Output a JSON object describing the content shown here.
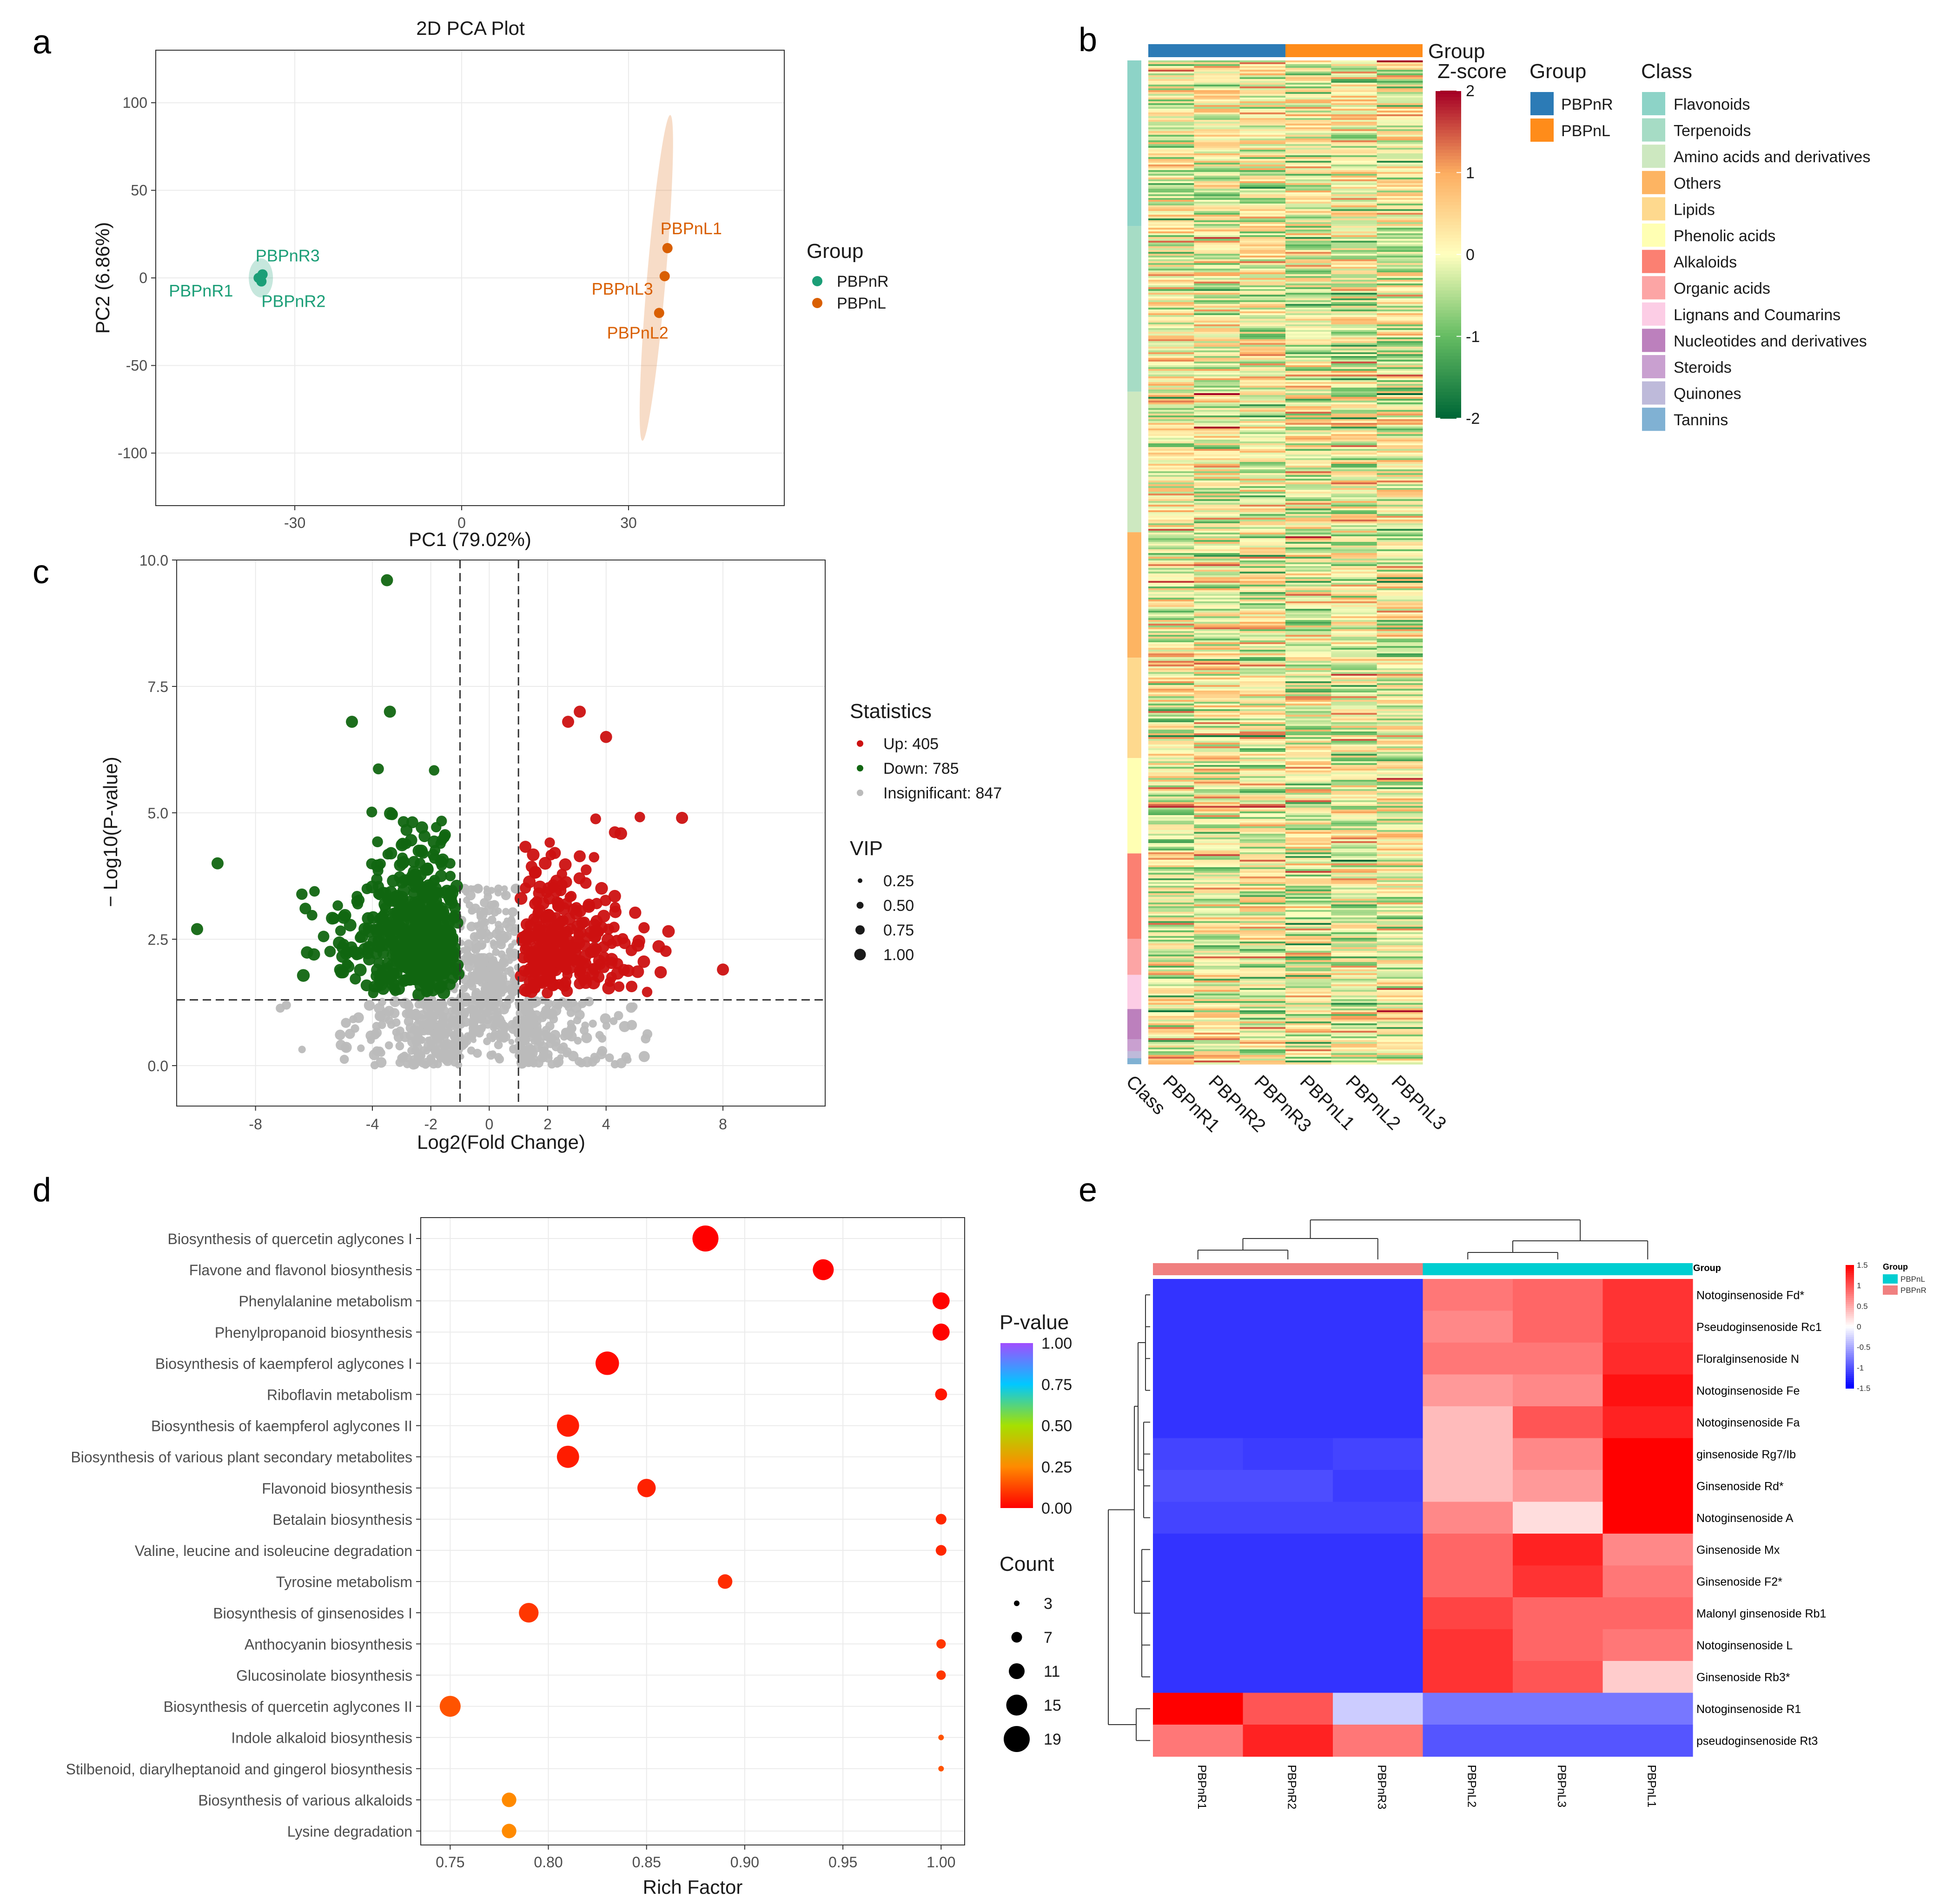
{
  "panel_labels": {
    "a": "a",
    "b": "b",
    "c": "c",
    "d": "d",
    "e": "e"
  },
  "colors": {
    "pbpnr_pca": "#1b9e77",
    "pbpnl_pca": "#d95f02",
    "up": "#cc1111",
    "down": "#116611",
    "insig": "#bbbbbb",
    "group_r": "#2c7bb6",
    "group_l": "#ff8c1a",
    "e_group_l": "#00ced1",
    "e_group_r": "#f08080"
  },
  "chart_data": [
    {
      "panel": "a",
      "type": "scatter",
      "title": "2D PCA Plot",
      "xlabel": "PC1 (79.02%)",
      "ylabel": "PC2 (6.86%)",
      "xlim": [
        -55,
        58
      ],
      "ylim": [
        -130,
        130
      ],
      "xticks": [
        -30,
        0,
        30
      ],
      "yticks": [
        100,
        50,
        0,
        -50,
        -100
      ],
      "xtick_labels": [
        "-30",
        "0",
        "30"
      ],
      "ytick_labels": [
        "100",
        "50",
        "0",
        "-50",
        "-100"
      ],
      "legend_title": "Group",
      "series": [
        {
          "name": "PBPnR",
          "points": [
            {
              "label": "PBPnR1",
              "x": -36.5,
              "y": 0
            },
            {
              "label": "PBPnR2",
              "x": -36.0,
              "y": -2
            },
            {
              "label": "PBPnR3",
              "x": -35.8,
              "y": 2
            }
          ]
        },
        {
          "name": "PBPnL",
          "points": [
            {
              "label": "PBPnL1",
              "x": 37.0,
              "y": 17
            },
            {
              "label": "PBPnL2",
              "x": 35.5,
              "y": -20
            },
            {
              "label": "PBPnL3",
              "x": 36.5,
              "y": 1
            }
          ]
        }
      ]
    },
    {
      "panel": "b",
      "type": "heatmap",
      "legend_group_title": "Group",
      "legend_class_title": "Class",
      "zscore_title": "Z-score",
      "zscore_ticks": [
        "2",
        "1",
        "0",
        "-1",
        "-2"
      ],
      "groups": [
        "PBPnR",
        "PBPnL"
      ],
      "columns": [
        "Class",
        "PBPnR1",
        "PBPnR2",
        "PBPnR3",
        "PBPnL1",
        "PBPnL2",
        "PBPnL3"
      ],
      "classes": [
        {
          "name": "Flavonoids",
          "color": "#8dd3c7",
          "frac": 0.165
        },
        {
          "name": "Terpenoids",
          "color": "#a6dcc5",
          "frac": 0.165
        },
        {
          "name": "Amino acids and derivatives",
          "color": "#cde8c0",
          "frac": 0.14
        },
        {
          "name": "Others",
          "color": "#fdb462",
          "frac": 0.125
        },
        {
          "name": "Lipids",
          "color": "#fed98e",
          "frac": 0.1
        },
        {
          "name": "Phenolic acids",
          "color": "#ffffb3",
          "frac": 0.095
        },
        {
          "name": "Alkaloids",
          "color": "#fb8072",
          "frac": 0.085
        },
        {
          "name": "Organic acids",
          "color": "#fca5a5",
          "frac": 0.036
        },
        {
          "name": "Lignans and Coumarins",
          "color": "#fccde5",
          "frac": 0.034
        },
        {
          "name": "Nucleotides and derivatives",
          "color": "#bc80bd",
          "frac": 0.03
        },
        {
          "name": "Steroids",
          "color": "#c9a0d0",
          "frac": 0.012
        },
        {
          "name": "Quinones",
          "color": "#bebada",
          "frac": 0.007
        },
        {
          "name": "Tannins",
          "color": "#80b1d3",
          "frac": 0.006
        }
      ]
    },
    {
      "panel": "c",
      "type": "scatter",
      "xlabel": "Log2(Fold Change)",
      "ylabel": "− Log10(P-value)",
      "xlim": [
        -10.7,
        11.5
      ],
      "ylim": [
        -0.8,
        10.0
      ],
      "xticks": [
        -8,
        -4,
        -2,
        0,
        2,
        4,
        8
      ],
      "xtick_labels": [
        "-8",
        "-4",
        "-2",
        "0",
        "2",
        "4",
        "8"
      ],
      "yticks": [
        0,
        2.5,
        5,
        7.5,
        10
      ],
      "ytick_labels": [
        "0.0",
        "2.5",
        "5.0",
        "7.5",
        "10.0"
      ],
      "thresholds": {
        "x": [
          -1,
          1
        ],
        "y": 1.3
      },
      "legend_stat_title": "Statistics",
      "legend_stats": [
        {
          "label": "Up: 405",
          "key": "up",
          "count": 405
        },
        {
          "label": "Down: 785",
          "key": "down",
          "count": 785
        },
        {
          "label": "Insignificant: 847",
          "key": "insig",
          "count": 847
        }
      ],
      "legend_vip_title": "VIP",
      "vip_levels": [
        "0.25",
        "0.50",
        "0.75",
        "1.00"
      ],
      "highlight_points": [
        {
          "x": -3.5,
          "y": 9.6,
          "cls": "down"
        },
        {
          "x": -4.7,
          "y": 6.8,
          "cls": "down"
        },
        {
          "x": -3.4,
          "y": 7.0,
          "cls": "down"
        },
        {
          "x": 3.1,
          "y": 7.0,
          "cls": "up"
        },
        {
          "x": 2.7,
          "y": 6.8,
          "cls": "up"
        },
        {
          "x": 4.0,
          "y": 6.5,
          "cls": "up"
        },
        {
          "x": 6.6,
          "y": 4.9,
          "cls": "up"
        },
        {
          "x": 8.0,
          "y": 1.9,
          "cls": "up"
        },
        {
          "x": -10.0,
          "y": 2.7,
          "cls": "down"
        },
        {
          "x": -9.3,
          "y": 4.0,
          "cls": "down"
        }
      ]
    },
    {
      "panel": "d",
      "type": "scatter",
      "xlabel": "Rich Factor",
      "xlim": [
        0.735,
        1.012
      ],
      "xticks": [
        0.75,
        0.8,
        0.85,
        0.9,
        0.95,
        1.0
      ],
      "xtick_labels": [
        "0.75",
        "0.80",
        "0.85",
        "0.90",
        "0.95",
        "1.00"
      ],
      "pvalue_title": "P-value",
      "pvalue_ticks": [
        "1.00",
        "0.75",
        "0.50",
        "0.25",
        "0.00"
      ],
      "count_title": "Count",
      "count_levels": [
        "3",
        "7",
        "11",
        "15",
        "19"
      ],
      "pathways": [
        {
          "name": "Biosynthesis of quercetin aglycones I",
          "rich": 0.88,
          "p": 0.002,
          "count": 19
        },
        {
          "name": "Flavone and flavonol biosynthesis",
          "rich": 0.94,
          "p": 0.004,
          "count": 15
        },
        {
          "name": "Phenylalanine metabolism",
          "rich": 1.0,
          "p": 0.005,
          "count": 12
        },
        {
          "name": "Phenylpropanoid biosynthesis",
          "rich": 1.0,
          "p": 0.006,
          "count": 12
        },
        {
          "name": "Biosynthesis of kaempferol aglycones I",
          "rich": 0.83,
          "p": 0.02,
          "count": 17
        },
        {
          "name": "Riboflavin metabolism",
          "rich": 1.0,
          "p": 0.04,
          "count": 8
        },
        {
          "name": "Biosynthesis of kaempferol aglycones II",
          "rich": 0.81,
          "p": 0.05,
          "count": 16
        },
        {
          "name": "Biosynthesis of various plant secondary metabolites",
          "rich": 0.81,
          "p": 0.05,
          "count": 16
        },
        {
          "name": "Flavonoid biosynthesis",
          "rich": 0.85,
          "p": 0.06,
          "count": 13
        },
        {
          "name": "Betalain biosynthesis",
          "rich": 1.0,
          "p": 0.07,
          "count": 7
        },
        {
          "name": "Valine, leucine and isoleucine degradation",
          "rich": 1.0,
          "p": 0.07,
          "count": 7
        },
        {
          "name": "Tyrosine metabolism",
          "rich": 0.89,
          "p": 0.08,
          "count": 10
        },
        {
          "name": "Biosynthesis of ginsenosides I",
          "rich": 0.79,
          "p": 0.1,
          "count": 14
        },
        {
          "name": "Anthocyanin biosynthesis",
          "rich": 1.0,
          "p": 0.1,
          "count": 6
        },
        {
          "name": "Glucosinolate biosynthesis",
          "rich": 1.0,
          "p": 0.1,
          "count": 6
        },
        {
          "name": "Biosynthesis of quercetin aglycones II",
          "rich": 0.75,
          "p": 0.15,
          "count": 15
        },
        {
          "name": "Indole alkaloid biosynthesis",
          "rich": 1.0,
          "p": 0.15,
          "count": 3
        },
        {
          "name": "Stilbenoid, diarylheptanoid and gingerol biosynthesis",
          "rich": 1.0,
          "p": 0.15,
          "count": 3
        },
        {
          "name": "Biosynthesis of various alkaloids",
          "rich": 0.78,
          "p": 0.25,
          "count": 10
        },
        {
          "name": "Lysine degradation",
          "rich": 0.78,
          "p": 0.25,
          "count": 10
        }
      ]
    },
    {
      "panel": "e",
      "type": "heatmap",
      "group_label": "Group",
      "legend_title": "Group",
      "legend_groups": [
        {
          "name": "PBPnL",
          "key": "e_group_l"
        },
        {
          "name": "PBPnR",
          "key": "e_group_r"
        }
      ],
      "scale_ticks": [
        "1.5",
        "1",
        "0.5",
        "0",
        "-0.5",
        "-1",
        "-1.5"
      ],
      "columns": [
        "PBPnR1",
        "PBPnR2",
        "PBPnR3",
        "PBPnL2",
        "PBPnL3",
        "PBPnL1"
      ],
      "col_groups": [
        "PBPnR",
        "PBPnR",
        "PBPnR",
        "PBPnL",
        "PBPnL",
        "PBPnL"
      ],
      "rows": [
        "Notoginsenoside Fd*",
        "Pseudoginsenoside Rc1",
        "Floralginsenoside N",
        "Notoginsenoside Fe",
        "Notoginsenoside Fa",
        "ginsenoside Rg7/Ib",
        "Ginsenoside Rd*",
        "Notoginsenoside A",
        "Ginsenoside Mx",
        "Ginsenoside F2*",
        "Malonyl ginsenoside Rb1",
        "Notoginsenoside L",
        "Ginsenoside Rb3*",
        "Notoginsenoside R1",
        "pseudoginsenoside Rt3"
      ],
      "values": [
        [
          -1.2,
          -1.2,
          -1.2,
          0.8,
          0.9,
          1.2
        ],
        [
          -1.2,
          -1.2,
          -1.2,
          0.7,
          0.9,
          1.2
        ],
        [
          -1.2,
          -1.2,
          -1.2,
          0.8,
          0.8,
          1.25
        ],
        [
          -1.2,
          -1.2,
          -1.2,
          0.6,
          0.7,
          1.4
        ],
        [
          -1.2,
          -1.2,
          -1.2,
          0.4,
          1.0,
          1.3
        ],
        [
          -1.1,
          -1.15,
          -1.1,
          0.4,
          0.7,
          1.5
        ],
        [
          -1.05,
          -1.05,
          -1.15,
          0.4,
          0.6,
          1.5
        ],
        [
          -1.1,
          -1.1,
          -1.1,
          0.7,
          0.2,
          1.5
        ],
        [
          -1.2,
          -1.2,
          -1.2,
          0.9,
          1.3,
          0.7
        ],
        [
          -1.2,
          -1.2,
          -1.2,
          0.9,
          1.2,
          0.8
        ],
        [
          -1.2,
          -1.2,
          -1.2,
          1.1,
          0.9,
          0.9
        ],
        [
          -1.2,
          -1.2,
          -1.2,
          1.2,
          0.9,
          0.8
        ],
        [
          -1.2,
          -1.2,
          -1.2,
          1.2,
          1.0,
          0.3
        ],
        [
          1.5,
          1.0,
          -0.3,
          -0.8,
          -0.8,
          -0.8
        ],
        [
          0.8,
          1.3,
          0.8,
          -1.0,
          -1.0,
          -1.0
        ]
      ]
    }
  ]
}
